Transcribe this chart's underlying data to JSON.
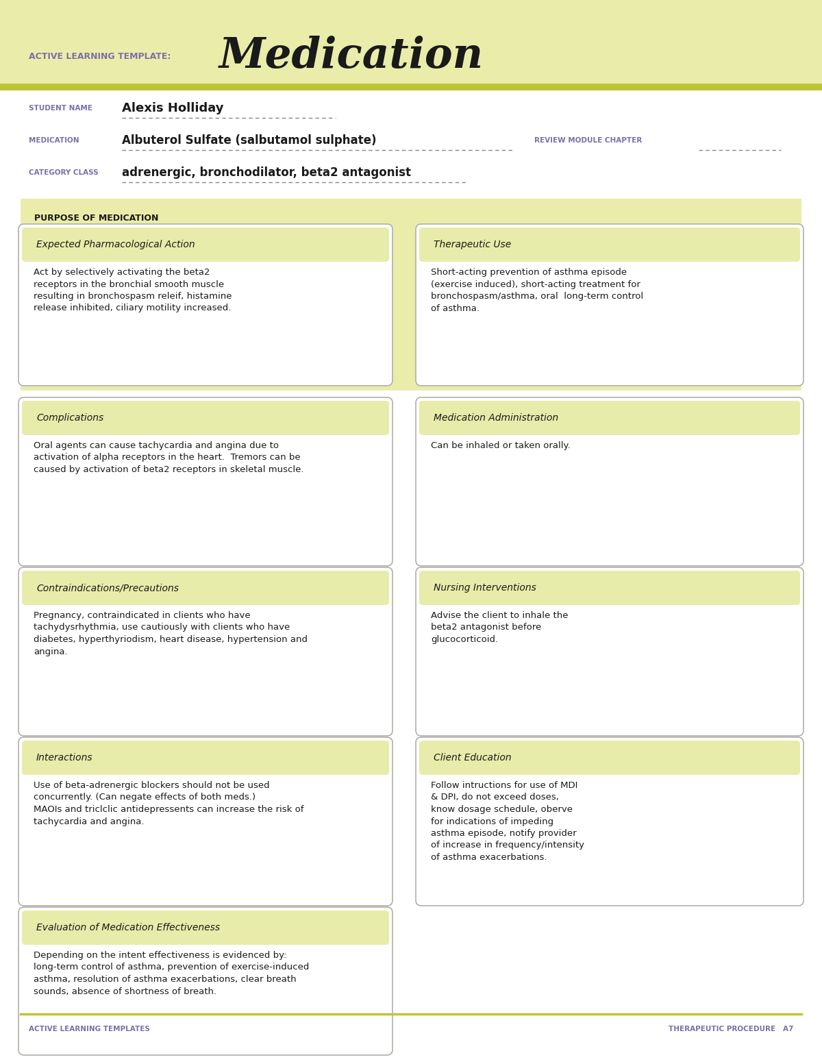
{
  "white": "#ffffff",
  "header_bg": "#eaedaa",
  "stripe_color": "#bec435",
  "box_title_bg": "#e8ecaa",
  "box_border": "#b0b0a8",
  "purple": "#7b6fa8",
  "dark": "#1a1a1a",
  "title_label": "ACTIVE LEARNING TEMPLATE:",
  "title_main": "Medication",
  "student_name": "Alexis Holliday",
  "medication": "Albuterol Sulfate (salbutamol sulphate)",
  "category_class": "adrenergic, bronchodilator, beta2 antagonist",
  "review_module": "REVIEW MODULE CHAPTER",
  "purpose_label": "PURPOSE OF MEDICATION",
  "footer_left": "ACTIVE LEARNING TEMPLATES",
  "footer_right": "THERAPEUTIC PROCEDURE   A7",
  "boxes": [
    {
      "title": "Expected Pharmacological Action",
      "body": "Act by selectively activating the beta2\nreceptors in the bronchial smooth muscle\nresulting in bronchospasm releif, histamine\nrelease inhibited, ciliary motility increased."
    },
    {
      "title": "Therapeutic Use",
      "body": "Short-acting prevention of asthma episode\n(exercise induced), short-acting treatment for\nbronchospasm/asthma, oral  long-term control\nof asthma."
    },
    {
      "title": "Complications",
      "body": "Oral agents can cause tachycardia and angina due to\nactivation of alpha receptors in the heart.  Tremors can be\ncaused by activation of beta2 receptors in skeletal muscle."
    },
    {
      "title": "Medication Administration",
      "body": "Can be inhaled or taken orally."
    },
    {
      "title": "Contraindications/Precautions",
      "body": "Pregnancy, contraindicated in clients who have\ntachydysrhythmia, use cautiously with clients who have\ndiabetes, hyperthyriodism, heart disease, hypertension and\nangina."
    },
    {
      "title": "Nursing Interventions",
      "body": "Advise the client to inhale the\nbeta2 antagonist before\nglucocorticoid."
    },
    {
      "title": "Interactions",
      "body": "Use of beta-adrenergic blockers should not be used\nconcurrently. (Can negate effects of both meds.)\nMAOIs and triclclic antidepressents can increase the risk of\ntachycardia and angina."
    },
    {
      "title": "Client Education",
      "body": "Follow intructions for use of MDI\n& DPI, do not exceed doses,\nknow dosage schedule, oberve\nfor indications of impeding\nasthma episode, notify provider\nof increase in frequency/intensity\nof asthma exacerbations."
    },
    {
      "title": "Evaluation of Medication Effectiveness",
      "body": "Depending on the intent effectiveness is evidenced by:\nlong-term control of asthma, prevention of exercise-induced\nasthma, resolution of asthma exacerbations, clear breath\nsounds, absence of shortness of breath."
    }
  ]
}
